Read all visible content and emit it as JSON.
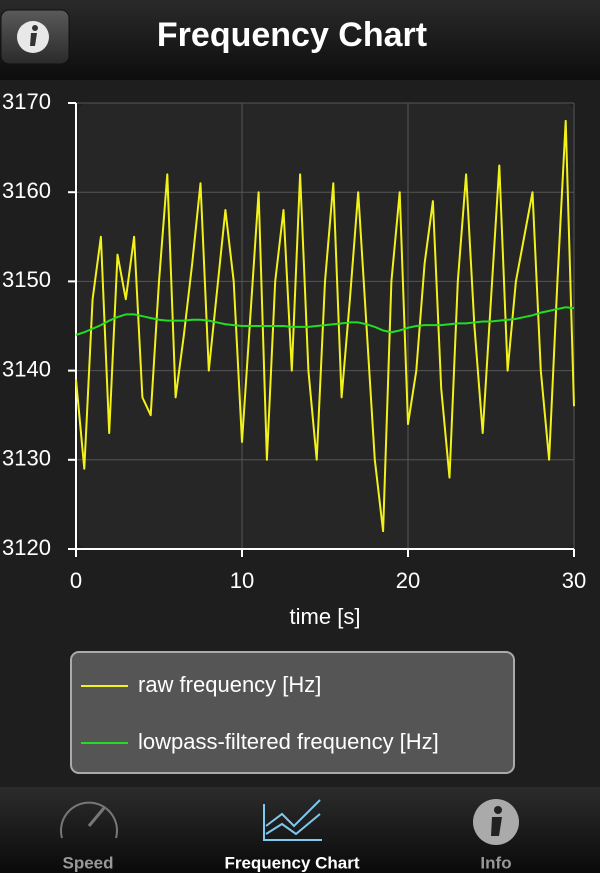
{
  "header": {
    "title": "Frequency Chart"
  },
  "chart_data": {
    "type": "line",
    "x_label": "time [s]",
    "x": [
      0,
      0.5,
      1,
      1.5,
      2,
      2.5,
      3,
      3.5,
      4,
      4.5,
      5,
      5.5,
      6,
      6.5,
      7,
      7.5,
      8,
      8.5,
      9,
      9.5,
      10,
      10.5,
      11,
      11.5,
      12,
      12.5,
      13,
      13.5,
      14,
      14.5,
      15,
      15.5,
      16,
      16.5,
      17,
      17.5,
      18,
      18.5,
      19,
      19.5,
      20,
      20.5,
      21,
      21.5,
      22,
      22.5,
      23,
      23.5,
      24,
      24.5,
      25,
      25.5,
      26,
      26.5,
      27,
      27.5,
      28,
      28.5,
      29,
      29.5,
      30
    ],
    "series": [
      {
        "name": "raw frequency [Hz]",
        "color": "#f2f21a",
        "values": [
          3139,
          3129,
          3148,
          3155,
          3133,
          3153,
          3148,
          3155,
          3137,
          3135,
          3150,
          3162,
          3137,
          3144,
          3152,
          3161,
          3140,
          3149,
          3158,
          3150,
          3132,
          3146,
          3160,
          3130,
          3150,
          3158,
          3140,
          3162,
          3140,
          3130,
          3150,
          3161,
          3137,
          3148,
          3160,
          3145,
          3130,
          3122,
          3150,
          3160,
          3134,
          3140,
          3152,
          3159,
          3138,
          3128,
          3150,
          3162,
          3145,
          3133,
          3148,
          3163,
          3140,
          3150,
          3155,
          3160,
          3140,
          3130,
          3150,
          3168,
          3136
        ]
      },
      {
        "name": "lowpass-filtered frequency [Hz]",
        "color": "#22dd22",
        "values": [
          3144.0,
          3144.3,
          3144.7,
          3145.1,
          3145.6,
          3146.0,
          3146.3,
          3146.3,
          3146.1,
          3145.9,
          3145.7,
          3145.6,
          3145.6,
          3145.6,
          3145.7,
          3145.7,
          3145.6,
          3145.4,
          3145.2,
          3145.1,
          3145.0,
          3145.0,
          3145.0,
          3145.0,
          3145.0,
          3145.0,
          3144.9,
          3144.9,
          3144.9,
          3145.0,
          3145.1,
          3145.2,
          3145.3,
          3145.4,
          3145.4,
          3145.2,
          3144.9,
          3144.5,
          3144.3,
          3144.5,
          3144.8,
          3145.0,
          3145.1,
          3145.1,
          3145.1,
          3145.2,
          3145.3,
          3145.3,
          3145.4,
          3145.5,
          3145.5,
          3145.6,
          3145.7,
          3145.8,
          3146.0,
          3146.2,
          3146.5,
          3146.7,
          3146.9,
          3147.1,
          3147.0
        ]
      }
    ],
    "xlim": [
      0,
      30
    ],
    "xticks": [
      0,
      10,
      20,
      30
    ],
    "ylim": [
      3120,
      3170
    ],
    "yticks": [
      3120,
      3130,
      3140,
      3150,
      3160,
      3170
    ],
    "grid": true
  },
  "tabs": [
    "Speed",
    "Frequency Chart",
    "Info"
  ],
  "active_tab": 1
}
